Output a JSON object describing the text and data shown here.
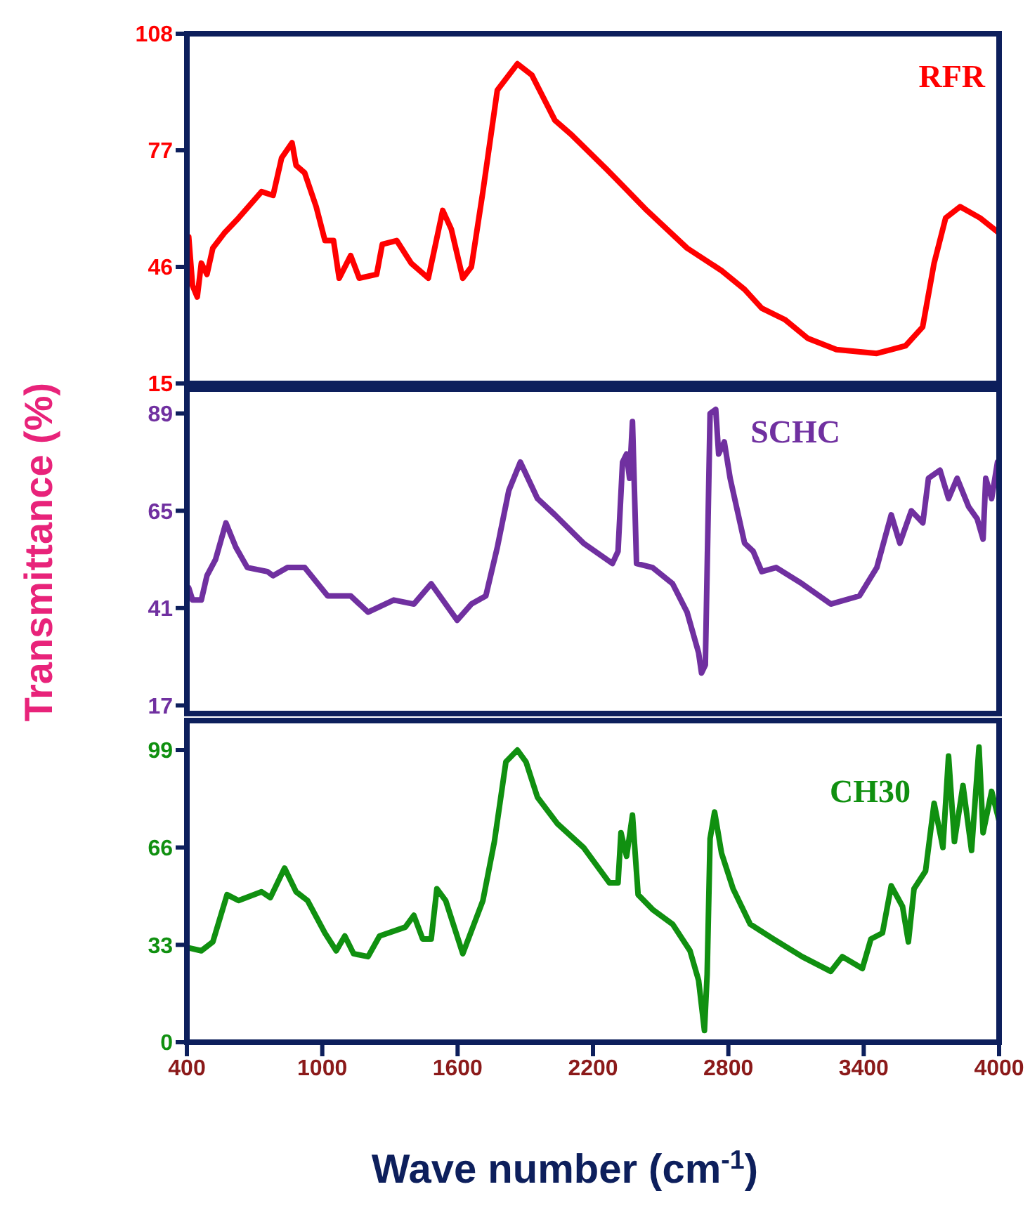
{
  "chart_data": [
    {
      "type": "line",
      "xlim": [
        400,
        4000
      ],
      "xticks": [
        400,
        1000,
        1600,
        2200,
        2800,
        3400,
        4000
      ],
      "ylim": [
        15,
        108
      ],
      "yticks": [
        15,
        46,
        77,
        108
      ],
      "tick_labels": "y",
      "grid": false,
      "legend": false,
      "marker": "none",
      "line_style": "solid",
      "series": [
        {
          "name": "RFR",
          "color": "#ff0000",
          "x": [
            408,
            425,
            446,
            464,
            489,
            515,
            566,
            629,
            731,
            782,
            820,
            866,
            884,
            922,
            973,
            1012,
            1050,
            1075,
            1126,
            1164,
            1241,
            1266,
            1330,
            1394,
            1470,
            1534,
            1572,
            1623,
            1661,
            1712,
            1776,
            1865,
            1929,
            2031,
            2107,
            2260,
            2439,
            2617,
            2770,
            2872,
            2948,
            3050,
            3152,
            3279,
            3458,
            3585,
            3661,
            3712,
            3763,
            3827,
            3916,
            4000
          ],
          "values": [
            54,
            41,
            38,
            47,
            44,
            51,
            55,
            59,
            66,
            65,
            75,
            79,
            73,
            71,
            62,
            53,
            53,
            43,
            49,
            43,
            44,
            52,
            53,
            47,
            43,
            61,
            56,
            43,
            46,
            66,
            93,
            100,
            97,
            85,
            81,
            72,
            61,
            51,
            45,
            40,
            35,
            32,
            27,
            24,
            23,
            25,
            30,
            47,
            59,
            62,
            59,
            55
          ]
        }
      ]
    },
    {
      "type": "line",
      "ylabel": "Transmittance (%)",
      "xlim": [
        400,
        4000
      ],
      "xticks": [
        400,
        1000,
        1600,
        2200,
        2800,
        3400,
        4000
      ],
      "ylim": [
        15,
        95
      ],
      "yticks": [
        17,
        41,
        65,
        89
      ],
      "tick_labels": "y",
      "grid": false,
      "legend": false,
      "marker": "none",
      "line_style": "solid",
      "series": [
        {
          "name": "SCHC",
          "color": "#7030a0",
          "x": [
            408,
            425,
            464,
            489,
            527,
            573,
            617,
            668,
            757,
            782,
            846,
            922,
            1024,
            1126,
            1203,
            1317,
            1406,
            1483,
            1598,
            1661,
            1725,
            1776,
            1827,
            1878,
            1954,
            2031,
            2158,
            2286,
            2311,
            2331,
            2349,
            2362,
            2375,
            2393,
            2464,
            2553,
            2617,
            2668,
            2681,
            2698,
            2719,
            2744,
            2757,
            2782,
            2808,
            2872,
            2910,
            2948,
            3012,
            3127,
            3254,
            3381,
            3458,
            3522,
            3560,
            3611,
            3662,
            3687,
            3738,
            3776,
            3814,
            3865,
            3903,
            3929,
            3941,
            3967,
            3993,
            4000
          ],
          "values": [
            46,
            43,
            43,
            49,
            53,
            62,
            56,
            51,
            50,
            49,
            51,
            51,
            44,
            44,
            40,
            43,
            42,
            47,
            38,
            42,
            44,
            56,
            70,
            77,
            68,
            64,
            57,
            52,
            55,
            77,
            79,
            73,
            87,
            52,
            51,
            47,
            40,
            30,
            25,
            27,
            89,
            90,
            79,
            82,
            73,
            57,
            55,
            50,
            51,
            47,
            42,
            44,
            51,
            64,
            57,
            65,
            62,
            73,
            75,
            68,
            73,
            66,
            63,
            58,
            73,
            68,
            77,
            74
          ]
        }
      ]
    },
    {
      "type": "line",
      "xlabel": "Wave number (cm$^{-1}$)",
      "xlim": [
        400,
        4000
      ],
      "xticks": [
        400,
        1000,
        1600,
        2200,
        2800,
        3400,
        4000
      ],
      "ylim": [
        0,
        109
      ],
      "yticks": [
        0,
        33,
        66,
        99
      ],
      "grid": false,
      "legend": false,
      "marker": "none",
      "line_style": "solid",
      "series": [
        {
          "name": "CH30",
          "color": "#109010",
          "x": [
            408,
            464,
            515,
            578,
            629,
            731,
            770,
            833,
            884,
            935,
            1012,
            1062,
            1100,
            1139,
            1203,
            1254,
            1368,
            1406,
            1445,
            1483,
            1508,
            1547,
            1623,
            1712,
            1763,
            1814,
            1865,
            1903,
            1954,
            2043,
            2158,
            2273,
            2311,
            2324,
            2349,
            2375,
            2400,
            2464,
            2553,
            2630,
            2668,
            2694,
            2706,
            2719,
            2739,
            2770,
            2821,
            2897,
            2999,
            3127,
            3254,
            3305,
            3394,
            3432,
            3483,
            3522,
            3572,
            3598,
            3623,
            3674,
            3712,
            3751,
            3776,
            3802,
            3840,
            3878,
            3911,
            3929,
            3967,
            4000
          ],
          "values": [
            32,
            31,
            34,
            50,
            48,
            51,
            49,
            59,
            51,
            48,
            37,
            31,
            36,
            30,
            29,
            36,
            39,
            43,
            35,
            35,
            52,
            48,
            30,
            48,
            68,
            95,
            99,
            95,
            83,
            74,
            66,
            54,
            54,
            71,
            63,
            77,
            50,
            45,
            40,
            31,
            21,
            4,
            23,
            69,
            78,
            64,
            52,
            40,
            35,
            29,
            24,
            29,
            25,
            35,
            37,
            53,
            46,
            34,
            52,
            58,
            81,
            66,
            97,
            68,
            87,
            65,
            100,
            71,
            85,
            75
          ]
        }
      ]
    }
  ]
}
